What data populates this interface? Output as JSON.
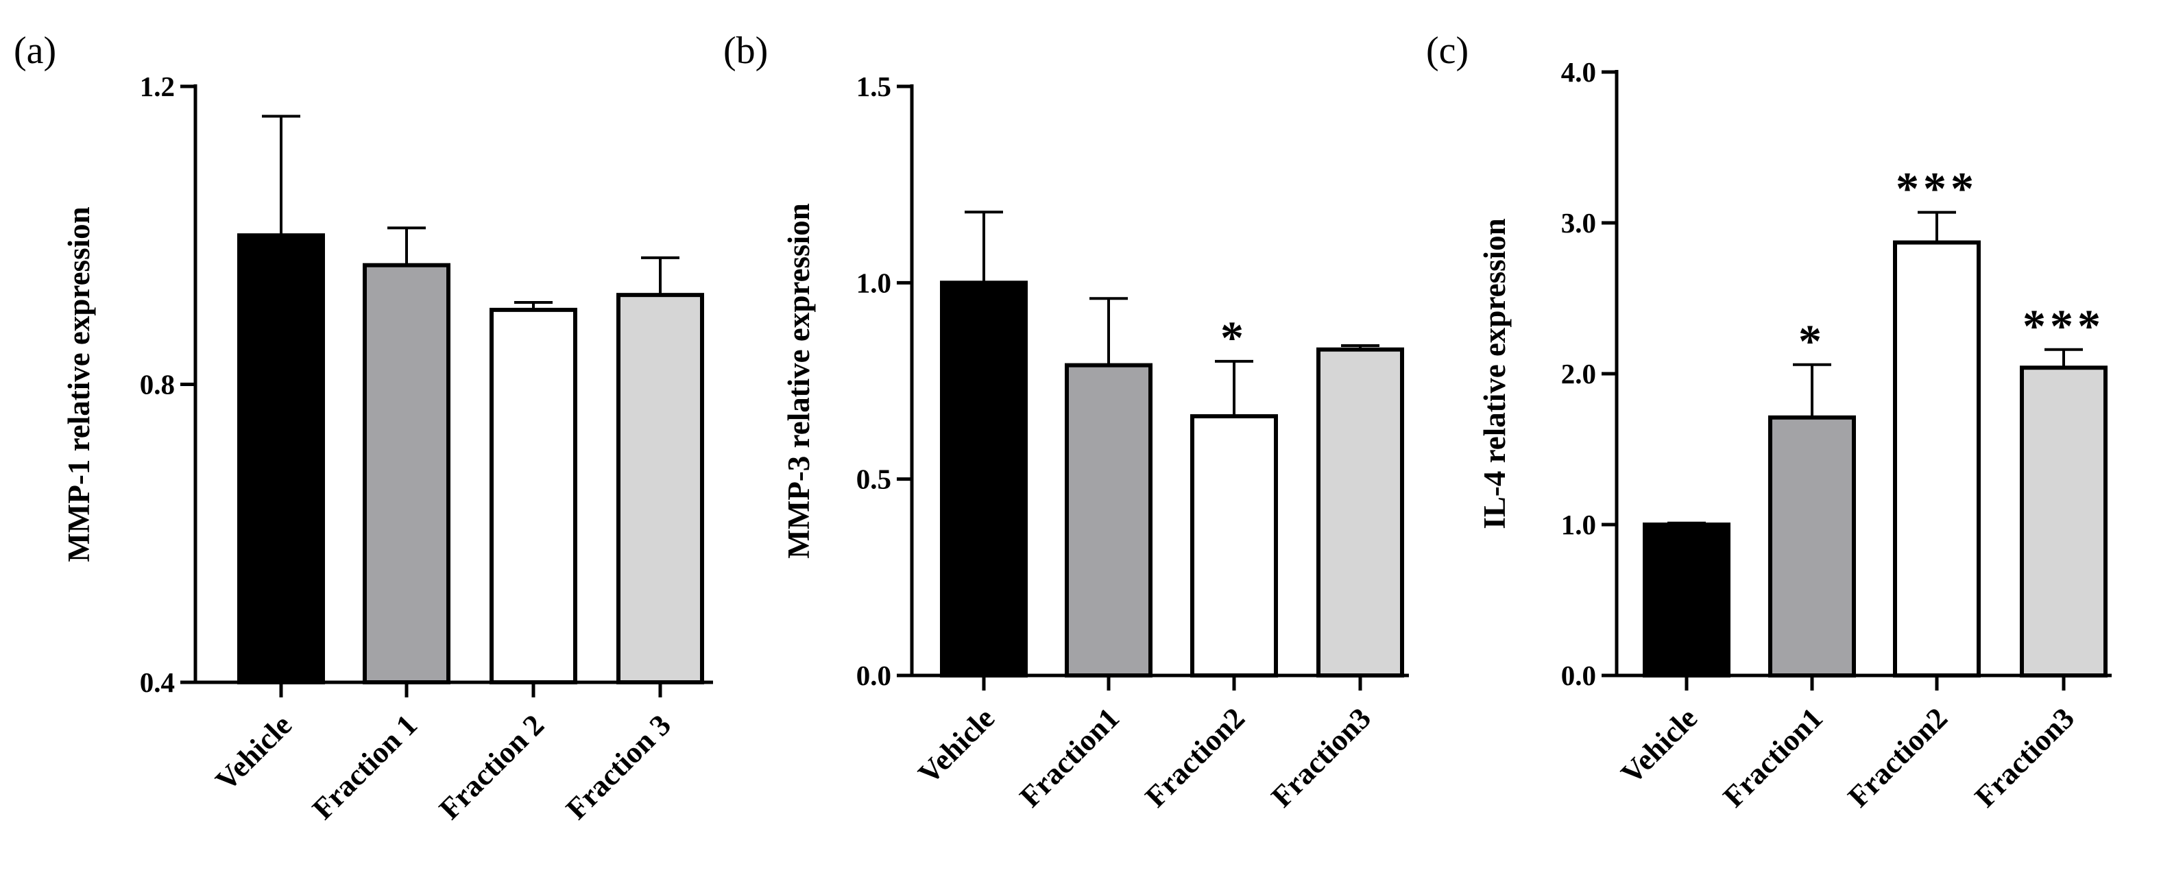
{
  "chart_data": [
    {
      "type": "bar",
      "panel_label": "(a)",
      "ylabel": "MMP-1 relative expression",
      "ylim": [
        0.4,
        1.2
      ],
      "yticks": [
        0.4,
        0.8,
        1.2
      ],
      "ytick_labels": [
        "0.4",
        "0.8",
        "1.2"
      ],
      "categories": [
        "Vehicle",
        "Fraction 1",
        "Fraction 2",
        "Fraction 3"
      ],
      "values": [
        1.0,
        0.96,
        0.9,
        0.92
      ],
      "errors": [
        0.16,
        0.05,
        0.01,
        0.05
      ],
      "significance": [
        "",
        "",
        "",
        ""
      ],
      "bar_colors": [
        "#000000",
        "#a3a3a6",
        "#ffffff",
        "#d6d6d6"
      ]
    },
    {
      "type": "bar",
      "panel_label": "(b)",
      "ylabel": "MMP-3 relative expression",
      "ylim": [
        0.0,
        1.5
      ],
      "yticks": [
        0.0,
        0.5,
        1.0,
        1.5
      ],
      "ytick_labels": [
        "0.0",
        "0.5",
        "1.0",
        "1.5"
      ],
      "categories": [
        "Vehicle",
        "Fraction1",
        "Fraction2",
        "Fraction3"
      ],
      "values": [
        1.0,
        0.79,
        0.66,
        0.83
      ],
      "errors": [
        0.18,
        0.17,
        0.14,
        0.01
      ],
      "significance": [
        "",
        "",
        "*",
        ""
      ],
      "bar_colors": [
        "#000000",
        "#a3a3a6",
        "#ffffff",
        "#d6d6d6"
      ]
    },
    {
      "type": "bar",
      "panel_label": "(c)",
      "ylabel": "IL-4 relative expression",
      "ylim": [
        0.0,
        4.0
      ],
      "yticks": [
        0.0,
        1.0,
        2.0,
        3.0,
        4.0
      ],
      "ytick_labels": [
        "0.0",
        "1.0",
        "2.0",
        "3.0",
        "4.0"
      ],
      "categories": [
        "Vehicle",
        "Fraction1",
        "Fraction2",
        "Fraction3"
      ],
      "values": [
        1.0,
        1.71,
        2.87,
        2.04
      ],
      "errors": [
        0.01,
        0.35,
        0.2,
        0.12
      ],
      "significance": [
        "",
        "*",
        "***",
        "***"
      ],
      "bar_colors": [
        "#000000",
        "#a3a3a6",
        "#ffffff",
        "#d6d6d6"
      ]
    }
  ]
}
